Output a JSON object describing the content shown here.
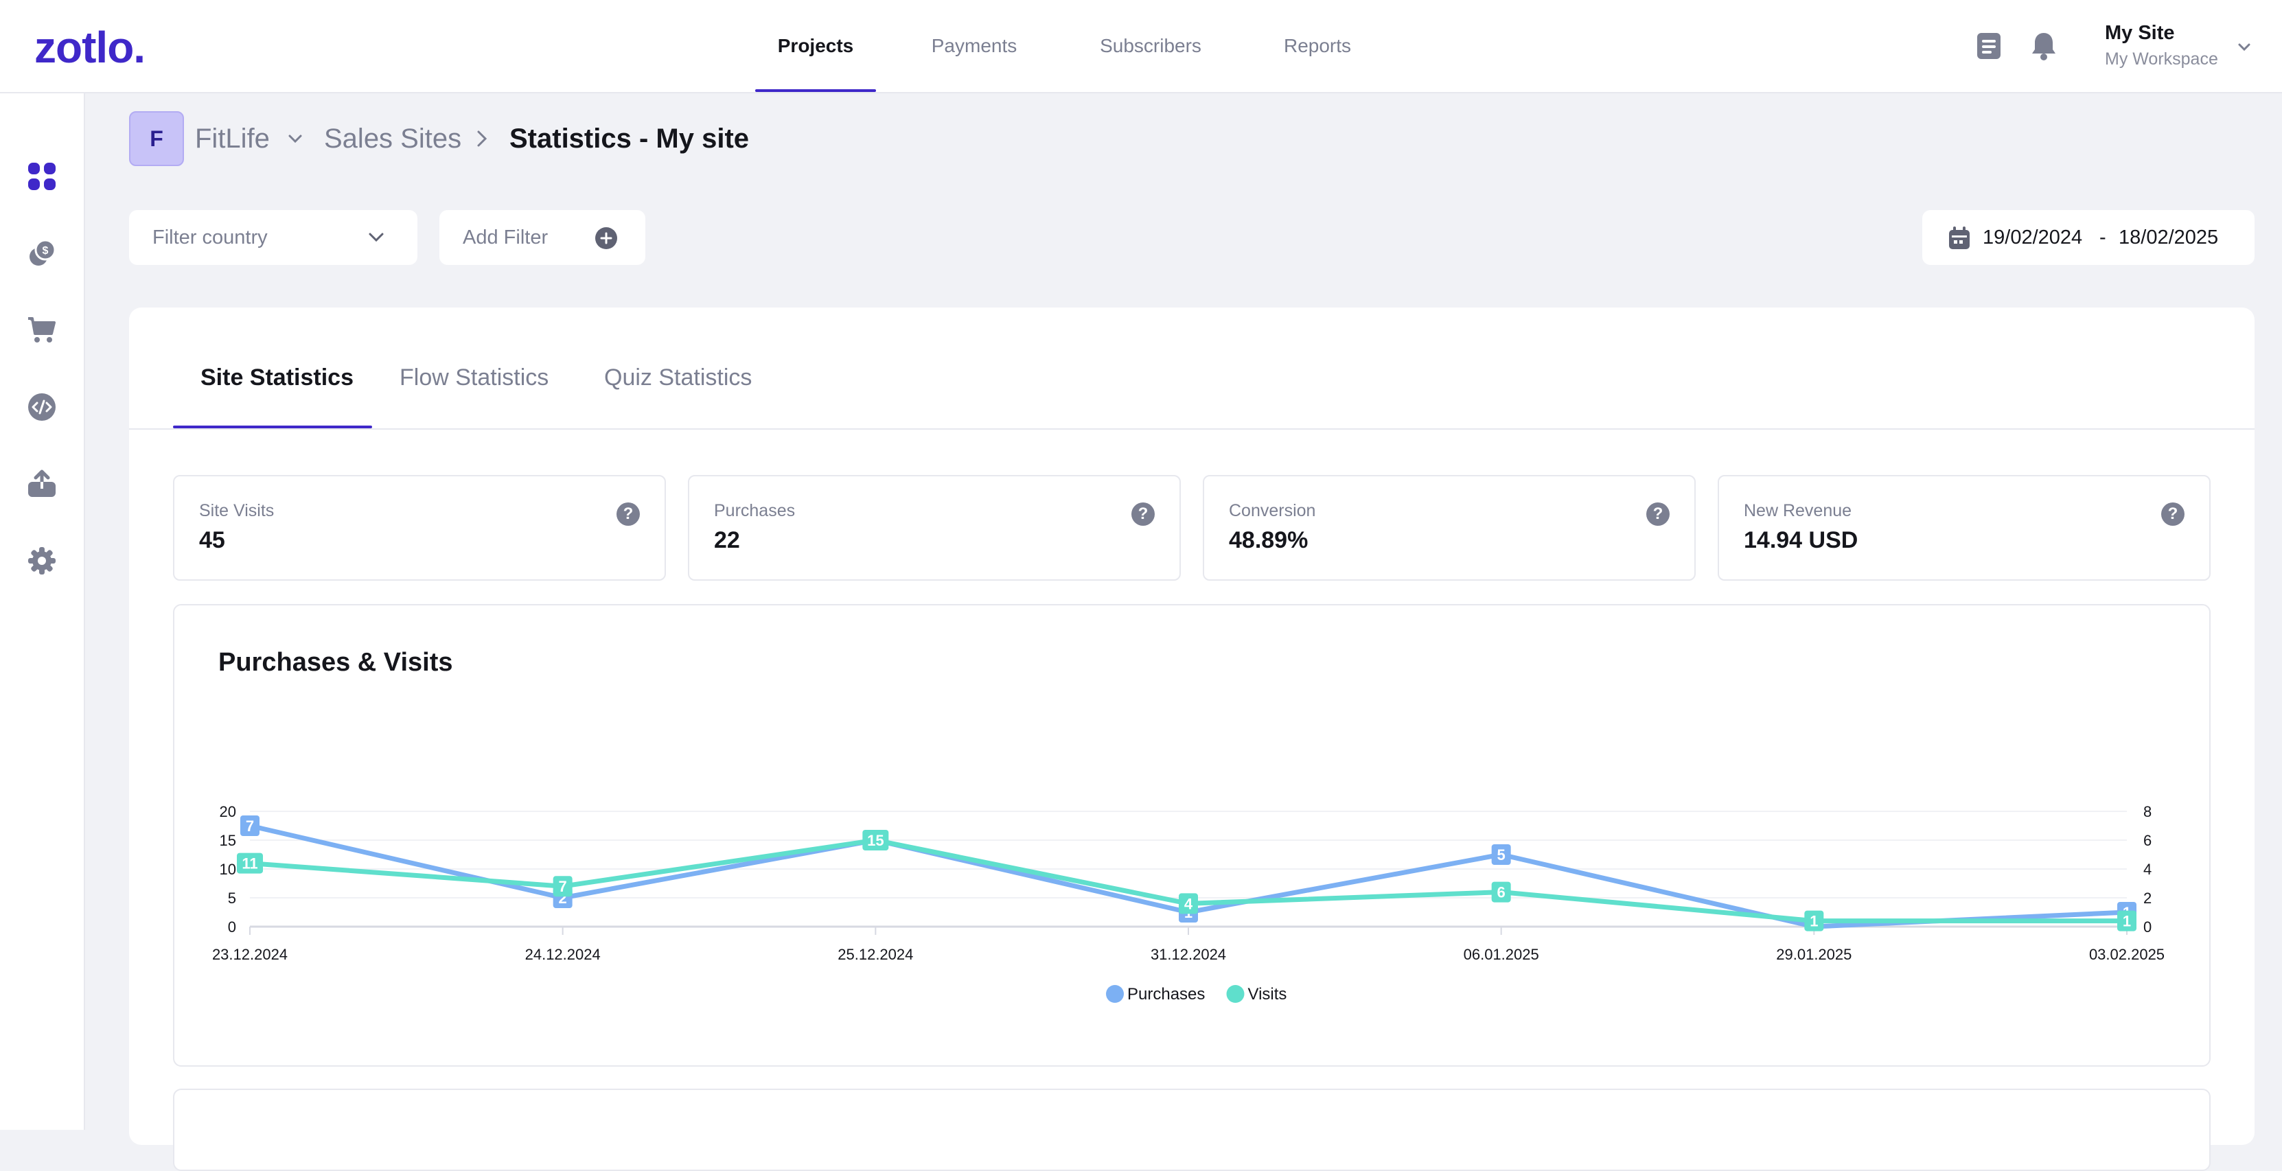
{
  "app": {
    "logo": "zotlo.",
    "nav": [
      "Projects",
      "Payments",
      "Subscribers",
      "Reports"
    ],
    "active_nav": "Projects",
    "user": {
      "name": "My Site",
      "workspace": "My Workspace"
    },
    "accent_color": "#3f28c9"
  },
  "sidebar": {
    "icons": [
      "dashboard-icon",
      "coins-icon",
      "cart-icon",
      "code-icon",
      "upload-icon",
      "gear-icon"
    ]
  },
  "breadcrumb": {
    "avatar_letter": "F",
    "project": "FitLife",
    "section": "Sales Sites",
    "title": "Statistics - My site"
  },
  "filters": {
    "country_placeholder": "Filter country",
    "add_filter": "Add Filter",
    "date_from": "19/02/2024",
    "date_separator": "-",
    "date_to": "18/02/2025"
  },
  "tabs": [
    "Site Statistics",
    "Flow Statistics",
    "Quiz Statistics"
  ],
  "active_tab": "Site Statistics",
  "stats": [
    {
      "label": "Site Visits",
      "value": "45"
    },
    {
      "label": "Purchases",
      "value": "22"
    },
    {
      "label": "Conversion",
      "value": "48.89%"
    },
    {
      "label": "New Revenue",
      "value": "14.94 USD"
    }
  ],
  "chart_data": {
    "type": "line",
    "title": "Purchases & Visits",
    "categories": [
      "23.12.2024",
      "24.12.2024",
      "25.12.2024",
      "31.12.2024",
      "06.01.2025",
      "29.01.2025",
      "03.02.2025"
    ],
    "series": [
      {
        "name": "Purchases",
        "axis": "right",
        "values": [
          7,
          2,
          6,
          1,
          5,
          0,
          1
        ],
        "color": "#7cb0f3",
        "labels": [
          "7",
          "2",
          "",
          "1",
          "5",
          "",
          "1"
        ]
      },
      {
        "name": "Visits",
        "axis": "left",
        "values": [
          11,
          7,
          15,
          4,
          6,
          1,
          1
        ],
        "color": "#5fdfcc",
        "labels": [
          "11",
          "7",
          "15",
          "4",
          "6",
          "1",
          "1"
        ]
      }
    ],
    "y_left": {
      "ticks": [
        0,
        5,
        10,
        15,
        20
      ],
      "range": [
        0,
        20
      ]
    },
    "y_right": {
      "ticks": [
        0,
        2,
        4,
        6,
        8
      ],
      "range": [
        0,
        8
      ]
    },
    "legend": "bottom-center"
  }
}
